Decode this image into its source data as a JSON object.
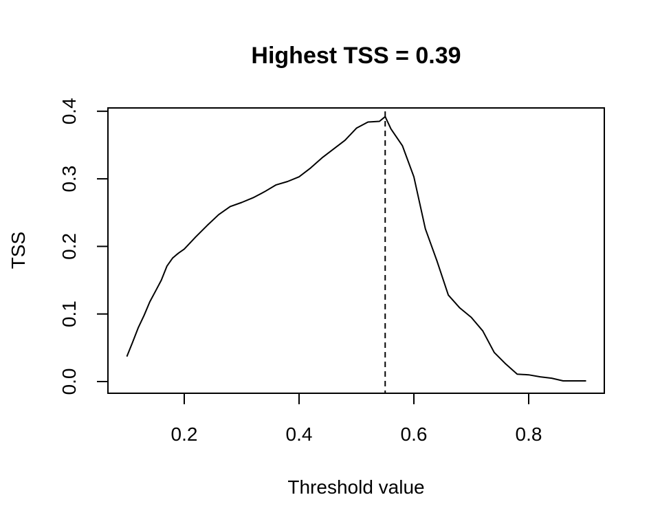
{
  "chart_data": {
    "type": "line",
    "title": "Highest TSS = 0.39",
    "xlabel": "Threshold value",
    "ylabel": "TSS",
    "xlim": [
      0.1,
      0.9
    ],
    "ylim": [
      0.0,
      0.39
    ],
    "x_ticks": [
      0.2,
      0.4,
      0.6,
      0.8
    ],
    "x_tick_labels": [
      "0.2",
      "0.4",
      "0.6",
      "0.8"
    ],
    "y_ticks": [
      0.0,
      0.1,
      0.2,
      0.3,
      0.4
    ],
    "y_tick_labels": [
      "0.0",
      "0.1",
      "0.2",
      "0.3",
      "0.4"
    ],
    "grid": false,
    "legend": "none",
    "vline": {
      "x": 0.55,
      "style": "dashed"
    },
    "series": [
      {
        "color": "#000000",
        "x": [
          0.1,
          0.11,
          0.12,
          0.13,
          0.14,
          0.15,
          0.16,
          0.17,
          0.18,
          0.19,
          0.2,
          0.22,
          0.24,
          0.26,
          0.28,
          0.3,
          0.32,
          0.34,
          0.36,
          0.38,
          0.4,
          0.42,
          0.44,
          0.46,
          0.48,
          0.5,
          0.52,
          0.54,
          0.55,
          0.56,
          0.58,
          0.6,
          0.62,
          0.64,
          0.66,
          0.68,
          0.7,
          0.72,
          0.74,
          0.76,
          0.78,
          0.8,
          0.82,
          0.84,
          0.86,
          0.88,
          0.9
        ],
        "y": [
          0.037,
          0.058,
          0.08,
          0.098,
          0.118,
          0.134,
          0.15,
          0.171,
          0.183,
          0.19,
          0.196,
          0.214,
          0.231,
          0.247,
          0.259,
          0.265,
          0.272,
          0.281,
          0.291,
          0.296,
          0.303,
          0.316,
          0.331,
          0.344,
          0.357,
          0.375,
          0.384,
          0.385,
          0.392,
          0.374,
          0.349,
          0.303,
          0.226,
          0.179,
          0.128,
          0.109,
          0.095,
          0.075,
          0.043,
          0.026,
          0.011,
          0.01,
          0.007,
          0.005,
          0.001,
          0.001,
          0.001
        ]
      }
    ]
  }
}
